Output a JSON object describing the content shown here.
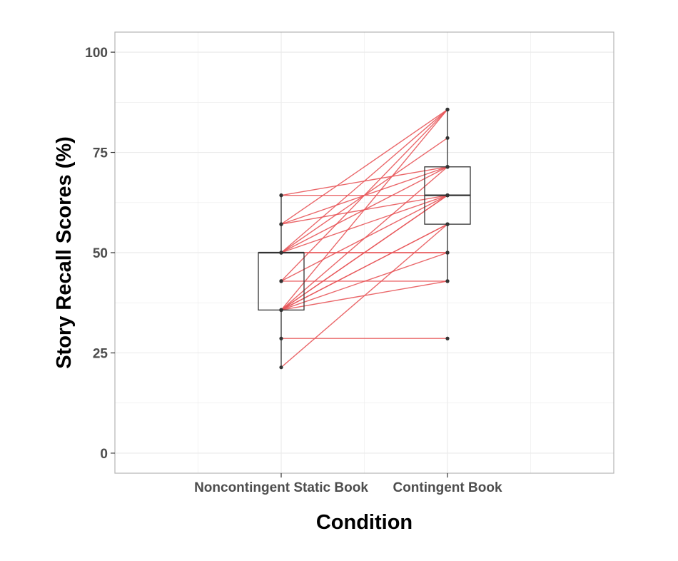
{
  "chart_data": {
    "type": "box-with-paired-lines",
    "title": "",
    "xlabel": "Condition",
    "ylabel": "Story Recall Scores (%)",
    "categories": [
      "Noncontingent Static Book",
      "Contingent Book"
    ],
    "ylim": [
      -5,
      105
    ],
    "yticks": [
      0,
      25,
      50,
      75,
      100
    ],
    "grid": true,
    "legend": "none",
    "boxes": [
      {
        "category": "Noncontingent Static Book",
        "whisker_low": 21.4,
        "q1": 35.7,
        "median": 50,
        "q3": 50,
        "whisker_high": 64.3
      },
      {
        "category": "Contingent Book",
        "whisker_low": 42.9,
        "q1": 57.1,
        "median": 64.3,
        "q3": 71.4,
        "whisker_high": 85.7
      }
    ],
    "outliers": [
      {
        "category": "Contingent Book",
        "value": 28.6
      }
    ],
    "pairs": [
      [
        21.4,
        57.1
      ],
      [
        28.6,
        28.6
      ],
      [
        35.7,
        42.9
      ],
      [
        35.7,
        50
      ],
      [
        35.7,
        57.1
      ],
      [
        35.7,
        64.3
      ],
      [
        35.7,
        71.4
      ],
      [
        35.7,
        85.7
      ],
      [
        35.7,
        64.3
      ],
      [
        35.7,
        57.1
      ],
      [
        42.9,
        42.9
      ],
      [
        42.9,
        64.3
      ],
      [
        42.9,
        85.7
      ],
      [
        50,
        50
      ],
      [
        50,
        64.3
      ],
      [
        50,
        71.4
      ],
      [
        50,
        85.7
      ],
      [
        50,
        78.6
      ],
      [
        50,
        50
      ],
      [
        57.1,
        71.4
      ],
      [
        57.1,
        64.3
      ],
      [
        57.1,
        85.7
      ],
      [
        64.3,
        64.3
      ],
      [
        64.3,
        71.4
      ]
    ],
    "colors": {
      "pair_line": "#e8575a",
      "box": "#333333",
      "point": "#333333",
      "grid": "#ebebeb",
      "panel_border": "#b3b3b3"
    }
  }
}
